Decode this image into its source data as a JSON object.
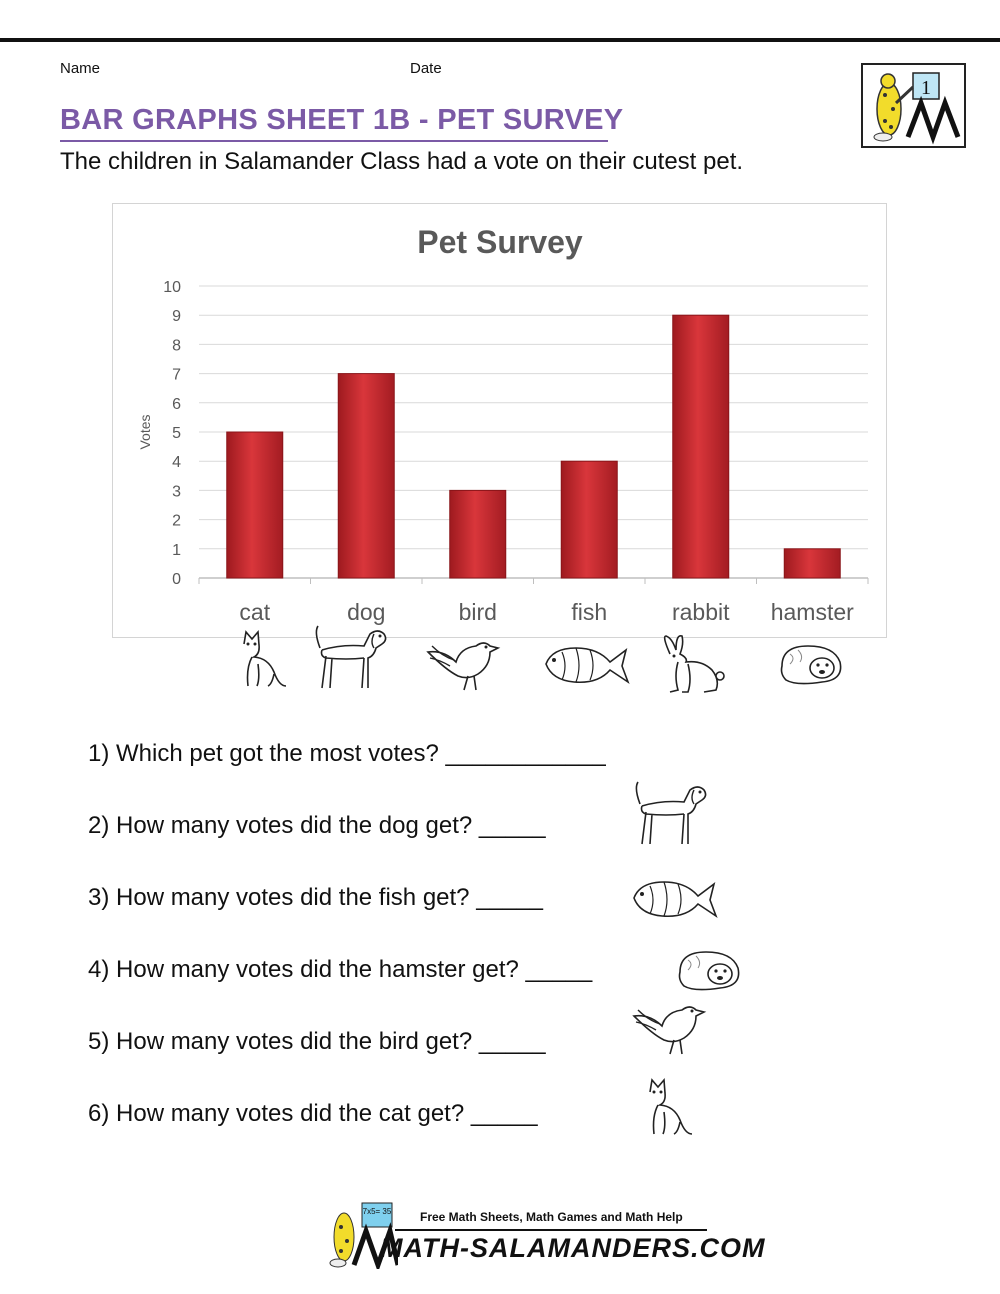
{
  "header": {
    "name_label": "Name",
    "date_label": "Date",
    "title": "BAR GRAPHS SHEET 1B - PET SURVEY",
    "intro": "The children in Salamander Class had a vote on their cutest pet.",
    "logo_grade": "1"
  },
  "colors": {
    "title": "#7b5aa6",
    "bar": "#c0272d",
    "grid": "#d9d9d9",
    "axis_text": "#595959"
  },
  "chart_data": {
    "type": "bar",
    "title": "Pet Survey",
    "ylabel": "Votes",
    "xlabel": "",
    "categories": [
      "cat",
      "dog",
      "bird",
      "fish",
      "rabbit",
      "hamster"
    ],
    "values": [
      5,
      7,
      3,
      4,
      9,
      1
    ],
    "ylim": [
      0,
      10
    ],
    "yticks": [
      "0",
      "1",
      "2",
      "3",
      "4",
      "5",
      "6",
      "7",
      "8",
      "9",
      "10"
    ],
    "grid": true,
    "legend": "none"
  },
  "pet_icons": [
    "cat-icon",
    "dog-icon",
    "bird-icon",
    "fish-icon",
    "rabbit-icon",
    "hamster-icon"
  ],
  "questions": [
    {
      "text": "1) Which pet got the most votes? ____________",
      "icon": ""
    },
    {
      "text": "2) How many votes did the dog get? _____",
      "icon": "dog-icon"
    },
    {
      "text": "3) How many votes did the fish get? _____",
      "icon": "fish-icon"
    },
    {
      "text": "4) How many votes did the hamster get? _____",
      "icon": "hamster-icon"
    },
    {
      "text": "5) How many votes did the bird get? _____",
      "icon": "bird-icon"
    },
    {
      "text": "6) How many votes did the cat get? _____",
      "icon": "cat-icon"
    }
  ],
  "footer": {
    "tagline": "Free Math Sheets, Math Games and Math Help",
    "brand": "MATH-SALAMANDERS.COM",
    "logo_sum": "7x5= 35"
  }
}
